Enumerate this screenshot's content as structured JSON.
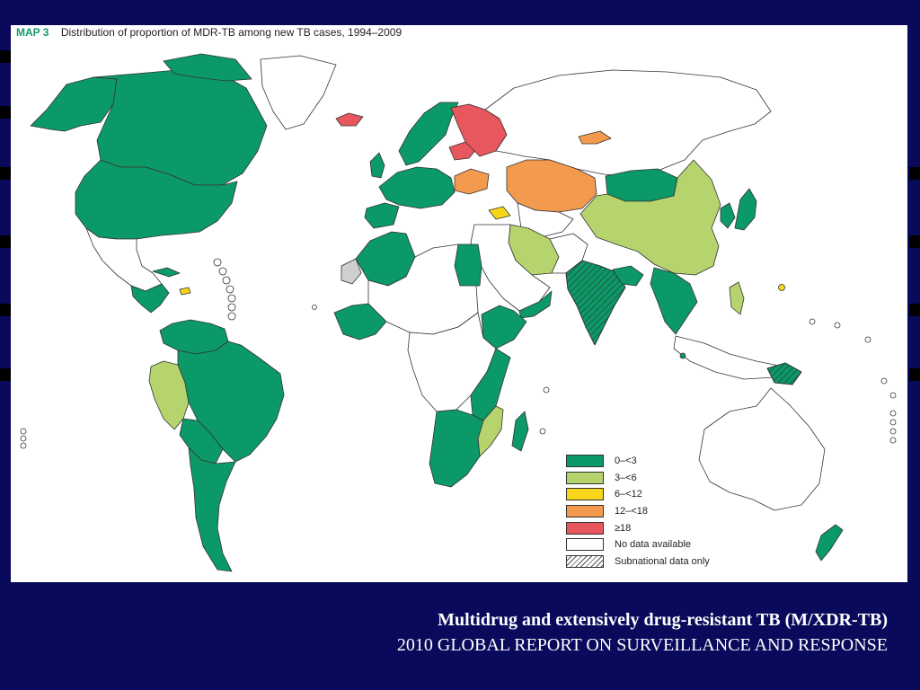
{
  "slide": {
    "caption_title": "Multidrug and extensively drug-resistant TB (M/XDR-TB)",
    "caption_subtitle": "2010 GLOBAL REPORT ON SURVEILLANCE AND RESPONSE"
  },
  "map": {
    "label": "MAP 3",
    "title": "Distribution of proportion of MDR-TB among new TB cases, 1994–2009",
    "colors": {
      "green": "#0b9a67",
      "light_green": "#b5d46e",
      "yellow": "#f7d619",
      "orange": "#f39a4e",
      "red": "#e8565e",
      "no_data": "#ffffff",
      "grey": "#cfcfcf",
      "border": "#333333",
      "ocean": "#ffffff"
    },
    "legend": [
      {
        "label": "0–<3",
        "color": "#0b9a67",
        "hatched": false
      },
      {
        "label": "3–<6",
        "color": "#b5d46e",
        "hatched": false
      },
      {
        "label": "6–<12",
        "color": "#f7d619",
        "hatched": false
      },
      {
        "label": "12–<18",
        "color": "#f39a4e",
        "hatched": false
      },
      {
        "label": "≥18",
        "color": "#e8565e",
        "hatched": false
      },
      {
        "label": "No data available",
        "color": "#ffffff",
        "hatched": false
      },
      {
        "label": "Subnational data only",
        "color": "#ffffff",
        "hatched": true
      }
    ]
  }
}
